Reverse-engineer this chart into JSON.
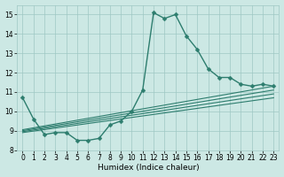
{
  "title": "",
  "xlabel": "Humidex (Indice chaleur)",
  "xlim": [
    -0.5,
    23.5
  ],
  "ylim": [
    8,
    15.5
  ],
  "yticks": [
    8,
    9,
    10,
    11,
    12,
    13,
    14,
    15
  ],
  "xticks": [
    0,
    1,
    2,
    3,
    4,
    5,
    6,
    7,
    8,
    9,
    10,
    11,
    12,
    13,
    14,
    15,
    16,
    17,
    18,
    19,
    20,
    21,
    22,
    23
  ],
  "bg_color": "#cce8e4",
  "grid_color": "#9fc8c4",
  "line_color": "#2d7d6e",
  "series_main": [
    10.7,
    9.6,
    8.8,
    8.9,
    8.9,
    8.5,
    8.5,
    8.6,
    9.3,
    9.5,
    10.0,
    11.1,
    15.1,
    14.8,
    15.0,
    13.9,
    13.2,
    12.2,
    11.75,
    11.75,
    11.4,
    11.3,
    11.4,
    11.3
  ],
  "smooth_lines": [
    {
      "x0": 0,
      "y0": 9.05,
      "x1": 23,
      "y1": 11.3
    },
    {
      "x0": 0,
      "y0": 9.0,
      "x1": 23,
      "y1": 11.1
    },
    {
      "x0": 0,
      "y0": 8.95,
      "x1": 23,
      "y1": 10.9
    },
    {
      "x0": 0,
      "y0": 8.9,
      "x1": 23,
      "y1": 10.7
    }
  ],
  "marker": "D",
  "marker_size": 2.5,
  "linewidth_main": 1.0,
  "linewidth_smooth": 0.8,
  "tick_fontsize": 5.5,
  "label_fontsize": 6.5
}
